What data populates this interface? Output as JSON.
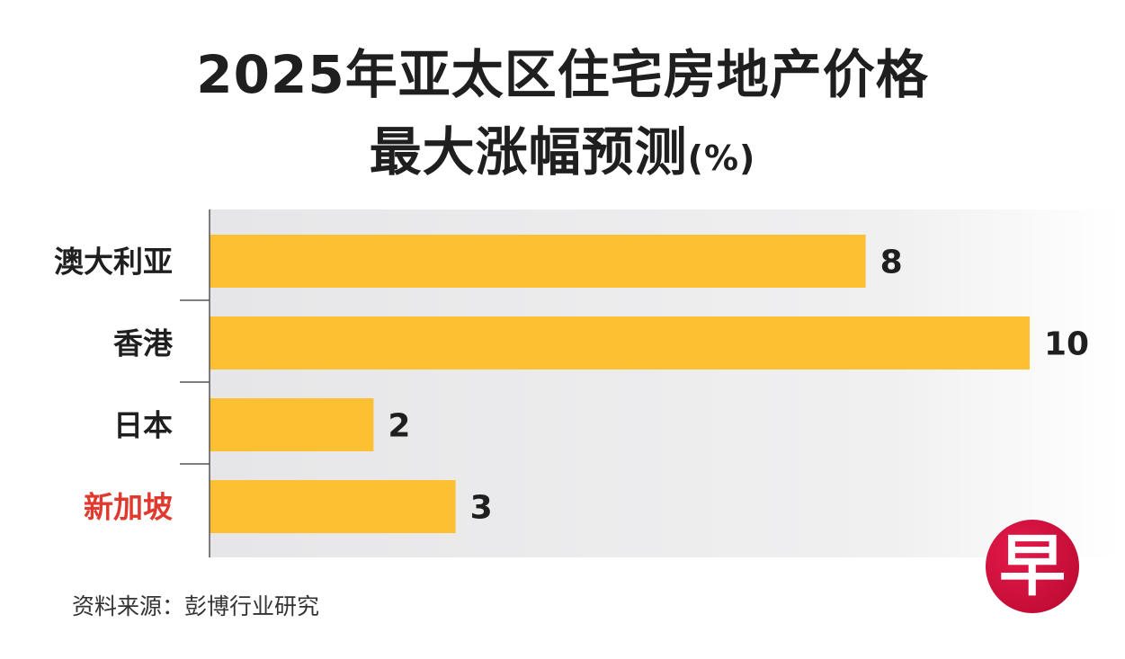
{
  "chart_data": {
    "type": "bar",
    "orientation": "horizontal",
    "title_line1": "2025年亚太区住宅房地产价格",
    "title_line2": "最大涨幅预测",
    "title_unit": "(%)",
    "categories": [
      "澳大利亚",
      "香港",
      "日本",
      "新加坡"
    ],
    "values": [
      8,
      10,
      2,
      3
    ],
    "value_labels": [
      "8",
      "10",
      "2",
      "3"
    ],
    "highlight_category": "新加坡",
    "xlim": [
      0,
      10
    ],
    "grid": false,
    "colors": {
      "bar": "#fdc032",
      "highlight_label": "#e03a2f",
      "label": "#1f1f1f"
    }
  },
  "source": "资料来源：彭博行业研究",
  "logo": {
    "text": "早",
    "color": "#c8103a"
  }
}
